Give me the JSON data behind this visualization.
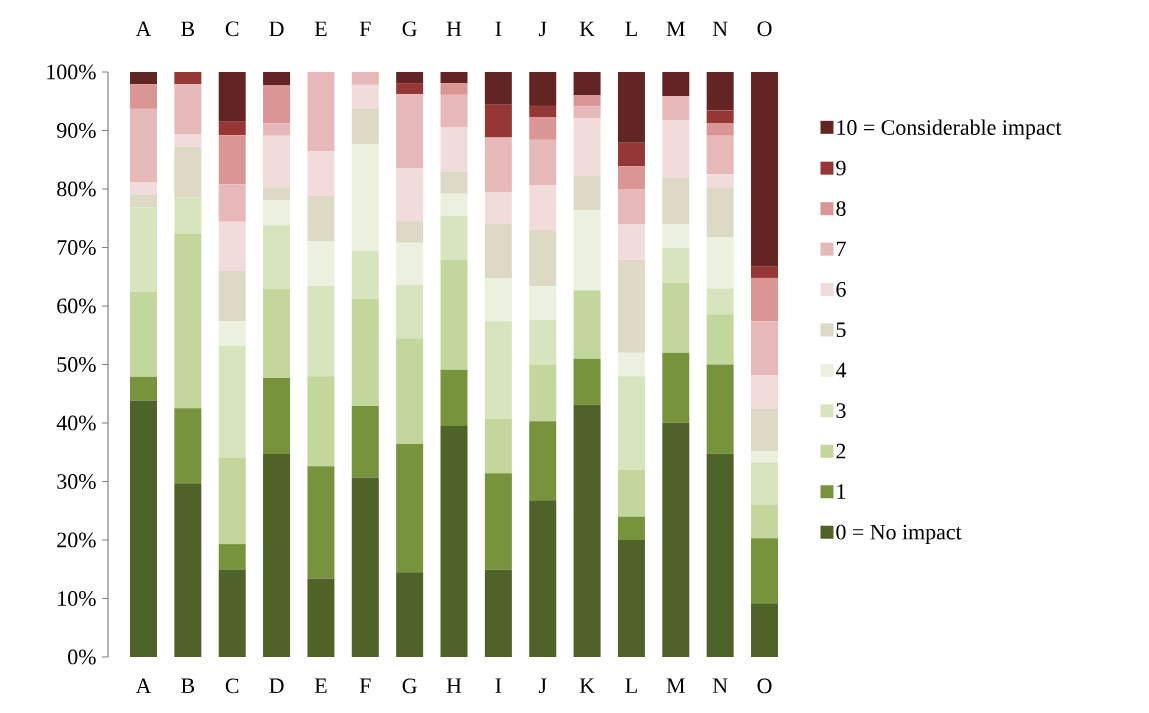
{
  "chart_data": {
    "type": "bar",
    "stacked": true,
    "categories": [
      "A",
      "B",
      "C",
      "D",
      "E",
      "F",
      "G",
      "H",
      "I",
      "J",
      "K",
      "L",
      "M",
      "N",
      "O"
    ],
    "ylim": [
      0,
      100
    ],
    "yticks": [
      {
        "value": 0,
        "label": "0%"
      },
      {
        "value": 10,
        "label": "10%"
      },
      {
        "value": 20,
        "label": "20%"
      },
      {
        "value": 30,
        "label": "30%"
      },
      {
        "value": 40,
        "label": "40%"
      },
      {
        "value": 50,
        "label": "50%"
      },
      {
        "value": 60,
        "label": "60%"
      },
      {
        "value": 70,
        "label": "70%"
      },
      {
        "value": 80,
        "label": "80%"
      },
      {
        "value": 90,
        "label": "90%"
      },
      {
        "value": 100,
        "label": "100%"
      }
    ],
    "legend": "right",
    "series": [
      {
        "name": "0 = No impact",
        "color": "#4f6228",
        "values": [
          43.8,
          29.7,
          14.9,
          34.7,
          13.4,
          30.7,
          14.5,
          39.5,
          14.9,
          26.8,
          43.1,
          20.0,
          40.1,
          34.8,
          9.2
        ]
      },
      {
        "name": "1",
        "color": "#77933c",
        "values": [
          4.1,
          12.8,
          4.4,
          13.0,
          19.2,
          12.2,
          21.9,
          9.6,
          16.5,
          13.5,
          7.9,
          4.0,
          11.9,
          15.2,
          11.1
        ]
      },
      {
        "name": "2",
        "color": "#c3d69b",
        "values": [
          14.5,
          29.8,
          14.8,
          15.3,
          15.4,
          18.3,
          18.1,
          18.8,
          9.3,
          9.7,
          11.7,
          8.0,
          12.0,
          8.6,
          5.7
        ]
      },
      {
        "name": "3",
        "color": "#d7e4bd",
        "values": [
          14.5,
          6.3,
          19.1,
          10.8,
          15.4,
          8.2,
          9.1,
          7.5,
          16.7,
          7.6,
          0,
          16.0,
          5.9,
          4.4,
          7.3
        ]
      },
      {
        "name": "4",
        "color": "#ebf1de",
        "values": [
          0,
          0,
          4.2,
          4.3,
          7.7,
          18.3,
          7.2,
          3.8,
          7.4,
          5.8,
          13.7,
          4.0,
          4.1,
          8.7,
          1.9
        ]
      },
      {
        "name": "5",
        "color": "#ddd9c4",
        "values": [
          2.2,
          8.6,
          8.6,
          2.2,
          7.7,
          6.1,
          3.7,
          3.8,
          9.3,
          9.6,
          5.8,
          15.9,
          7.9,
          8.6,
          7.3
        ]
      },
      {
        "name": "6",
        "color": "#f2dcdb",
        "values": [
          2.0,
          2.1,
          8.4,
          8.8,
          7.6,
          4.0,
          9.1,
          7.5,
          5.4,
          7.7,
          9.9,
          6.1,
          9.9,
          2.2,
          5.6
        ]
      },
      {
        "name": "7",
        "color": "#e6b9b8",
        "values": [
          12.6,
          8.6,
          6.4,
          2.1,
          13.6,
          2.2,
          12.6,
          5.6,
          9.3,
          7.7,
          2.0,
          5.9,
          4.1,
          6.6,
          9.3
        ]
      },
      {
        "name": "8",
        "color": "#d99694",
        "values": [
          4.2,
          0,
          8.4,
          6.5,
          0,
          0,
          0,
          2.0,
          0,
          3.9,
          1.9,
          4.0,
          0,
          2.1,
          7.4
        ]
      },
      {
        "name": "9",
        "color": "#953735",
        "values": [
          0,
          2.1,
          2.3,
          0,
          0,
          0,
          1.9,
          0,
          5.6,
          1.9,
          0,
          4.0,
          0,
          2.2,
          1.9
        ]
      },
      {
        "name": "10 = Considerable impact",
        "color": "#632523",
        "values": [
          2.1,
          0,
          8.5,
          2.3,
          0,
          0,
          1.9,
          1.9,
          5.6,
          5.8,
          4.0,
          12.1,
          4.1,
          6.6,
          33.3
        ]
      }
    ]
  }
}
